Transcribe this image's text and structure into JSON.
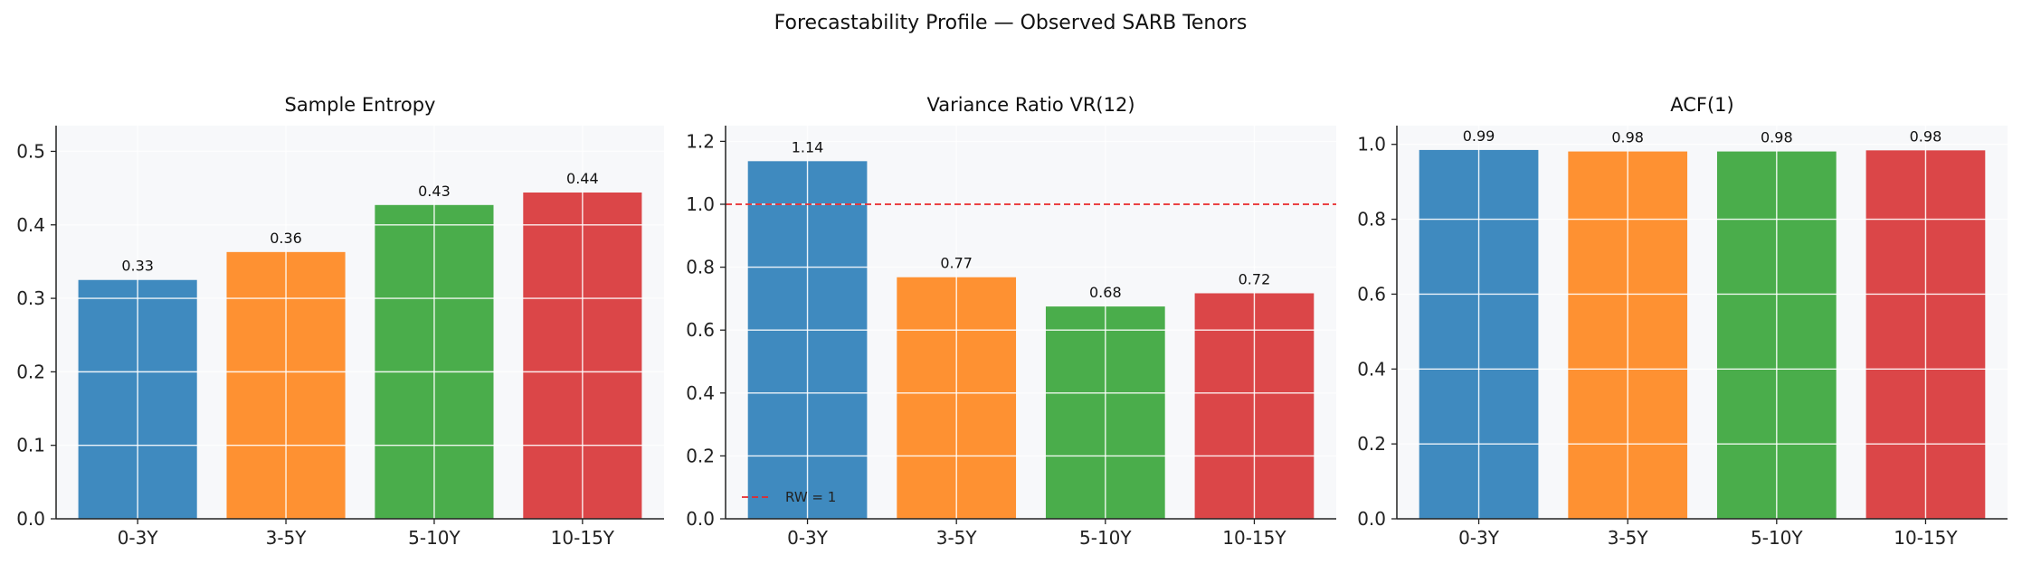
{
  "figure": {
    "title": "Forecastability Profile — Observed SARB Tenors"
  },
  "colors": {
    "series": [
      "#1f77b4",
      "#ff7f0e",
      "#2ca02c",
      "#d62728"
    ],
    "plot_background": "#f7f8fa",
    "grid": "#ffffff",
    "reference_line": "#e8282a",
    "axis": "#222222"
  },
  "chart_data": [
    {
      "type": "bar",
      "title": "Sample Entropy",
      "categories": [
        "0-3Y",
        "3-5Y",
        "5-10Y",
        "10-15Y"
      ],
      "values": [
        0.325,
        0.363,
        0.427,
        0.444
      ],
      "data_labels": [
        "0.33",
        "0.36",
        "0.43",
        "0.44"
      ],
      "ylim": [
        0,
        0.535
      ],
      "yticks": [
        0.0,
        0.1,
        0.2,
        0.3,
        0.4,
        0.5
      ],
      "ytick_labels": [
        "0.0",
        "0.1",
        "0.2",
        "0.3",
        "0.4",
        "0.5"
      ],
      "xlabel": "",
      "ylabel": "",
      "grid": true
    },
    {
      "type": "bar",
      "title": "Variance Ratio VR(12)",
      "categories": [
        "0-3Y",
        "3-5Y",
        "5-10Y",
        "10-15Y"
      ],
      "values": [
        1.137,
        0.768,
        0.675,
        0.717
      ],
      "data_labels": [
        "1.14",
        "0.77",
        "0.68",
        "0.72"
      ],
      "ylim": [
        0,
        1.25
      ],
      "yticks": [
        0.0,
        0.2,
        0.4,
        0.6,
        0.8,
        1.0,
        1.2
      ],
      "ytick_labels": [
        "0.0",
        "0.2",
        "0.4",
        "0.6",
        "0.8",
        "1.0",
        "1.2"
      ],
      "reference_line": {
        "y": 1.0,
        "label": "RW = 1",
        "style": "dashed"
      },
      "legend": {
        "position": "lower-left",
        "entries": [
          "RW = 1"
        ]
      },
      "xlabel": "",
      "ylabel": "",
      "grid": true
    },
    {
      "type": "bar",
      "title": "ACF(1)",
      "categories": [
        "0-3Y",
        "3-5Y",
        "5-10Y",
        "10-15Y"
      ],
      "values": [
        0.985,
        0.981,
        0.981,
        0.984
      ],
      "data_labels": [
        "0.99",
        "0.98",
        "0.98",
        "0.98"
      ],
      "ylim": [
        0,
        1.05
      ],
      "yticks": [
        0.0,
        0.2,
        0.4,
        0.6,
        0.8,
        1.0
      ],
      "ytick_labels": [
        "0.0",
        "0.2",
        "0.4",
        "0.6",
        "0.8",
        "1.0"
      ],
      "xlabel": "",
      "ylabel": "",
      "grid": true
    }
  ]
}
